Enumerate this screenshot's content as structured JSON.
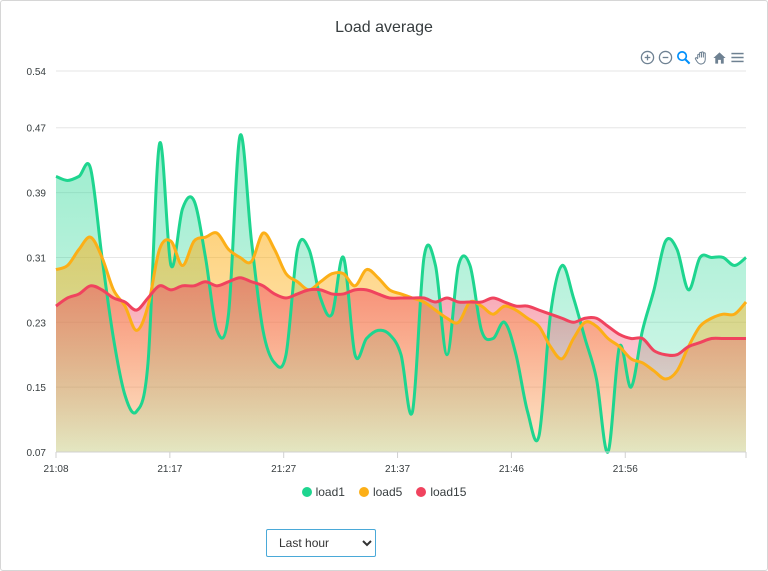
{
  "chart_data": {
    "type": "area",
    "title": "Load average",
    "xlabel": "",
    "ylabel": "",
    "ylim": [
      0.07,
      0.54
    ],
    "y_ticks": [
      "0.54",
      "0.47",
      "0.39",
      "0.31",
      "0.23",
      "0.15",
      "0.07"
    ],
    "x_ticks": [
      "21:08",
      "21:17",
      "21:27",
      "21:37",
      "21:46",
      "21:56"
    ],
    "x_range_minutes": [
      0,
      60
    ],
    "x_tick_minutes": [
      0,
      9.9,
      19.8,
      29.7,
      39.6,
      49.5
    ],
    "grid": true,
    "legend_position": "bottom",
    "series": [
      {
        "name": "load15",
        "color": "#f0435e",
        "points": [
          [
            0,
            0.25
          ],
          [
            1,
            0.26
          ],
          [
            2,
            0.265
          ],
          [
            3,
            0.275
          ],
          [
            4,
            0.27
          ],
          [
            5,
            0.26
          ],
          [
            6,
            0.255
          ],
          [
            7,
            0.245
          ],
          [
            8,
            0.26
          ],
          [
            9,
            0.275
          ],
          [
            10,
            0.27
          ],
          [
            11,
            0.275
          ],
          [
            12,
            0.275
          ],
          [
            13,
            0.28
          ],
          [
            14,
            0.275
          ],
          [
            15,
            0.28
          ],
          [
            16,
            0.285
          ],
          [
            17,
            0.28
          ],
          [
            18,
            0.275
          ],
          [
            19,
            0.265
          ],
          [
            20,
            0.26
          ],
          [
            21,
            0.265
          ],
          [
            22,
            0.27
          ],
          [
            23,
            0.27
          ],
          [
            24,
            0.265
          ],
          [
            25,
            0.265
          ],
          [
            26,
            0.27
          ],
          [
            27,
            0.27
          ],
          [
            28,
            0.265
          ],
          [
            29,
            0.26
          ],
          [
            30,
            0.26
          ],
          [
            31,
            0.26
          ],
          [
            32,
            0.26
          ],
          [
            33,
            0.255
          ],
          [
            34,
            0.26
          ],
          [
            35,
            0.255
          ],
          [
            36,
            0.255
          ],
          [
            37,
            0.255
          ],
          [
            38,
            0.26
          ],
          [
            39,
            0.255
          ],
          [
            40,
            0.25
          ],
          [
            41,
            0.25
          ],
          [
            42,
            0.245
          ],
          [
            43,
            0.24
          ],
          [
            44,
            0.235
          ],
          [
            45,
            0.23
          ],
          [
            46,
            0.235
          ],
          [
            47,
            0.235
          ],
          [
            48,
            0.225
          ],
          [
            49,
            0.215
          ],
          [
            50,
            0.21
          ],
          [
            51,
            0.21
          ],
          [
            52,
            0.195
          ],
          [
            53,
            0.19
          ],
          [
            54,
            0.19
          ],
          [
            55,
            0.2
          ],
          [
            56,
            0.205
          ],
          [
            57,
            0.21
          ],
          [
            58,
            0.21
          ],
          [
            59,
            0.21
          ],
          [
            60,
            0.21
          ]
        ]
      },
      {
        "name": "load5",
        "color": "#fcaf17",
        "points": [
          [
            0,
            0.295
          ],
          [
            1,
            0.3
          ],
          [
            2,
            0.32
          ],
          [
            3,
            0.335
          ],
          [
            4,
            0.31
          ],
          [
            5,
            0.27
          ],
          [
            6,
            0.25
          ],
          [
            7,
            0.22
          ],
          [
            8,
            0.25
          ],
          [
            9,
            0.32
          ],
          [
            10,
            0.33
          ],
          [
            11,
            0.3
          ],
          [
            12,
            0.33
          ],
          [
            13,
            0.335
          ],
          [
            14,
            0.34
          ],
          [
            15,
            0.32
          ],
          [
            16,
            0.31
          ],
          [
            17,
            0.305
          ],
          [
            18,
            0.34
          ],
          [
            19,
            0.32
          ],
          [
            20,
            0.29
          ],
          [
            21,
            0.28
          ],
          [
            22,
            0.27
          ],
          [
            23,
            0.28
          ],
          [
            24,
            0.29
          ],
          [
            25,
            0.29
          ],
          [
            26,
            0.275
          ],
          [
            27,
            0.295
          ],
          [
            28,
            0.285
          ],
          [
            29,
            0.27
          ],
          [
            30,
            0.265
          ],
          [
            31,
            0.26
          ],
          [
            32,
            0.255
          ],
          [
            33,
            0.245
          ],
          [
            34,
            0.235
          ],
          [
            35,
            0.23
          ],
          [
            36,
            0.255
          ],
          [
            37,
            0.25
          ],
          [
            38,
            0.24
          ],
          [
            39,
            0.25
          ],
          [
            40,
            0.245
          ],
          [
            41,
            0.235
          ],
          [
            42,
            0.225
          ],
          [
            43,
            0.2
          ],
          [
            44,
            0.185
          ],
          [
            45,
            0.21
          ],
          [
            46,
            0.23
          ],
          [
            47,
            0.225
          ],
          [
            48,
            0.21
          ],
          [
            49,
            0.2
          ],
          [
            50,
            0.185
          ],
          [
            51,
            0.18
          ],
          [
            52,
            0.17
          ],
          [
            53,
            0.16
          ],
          [
            54,
            0.17
          ],
          [
            55,
            0.2
          ],
          [
            56,
            0.225
          ],
          [
            57,
            0.235
          ],
          [
            58,
            0.24
          ],
          [
            59,
            0.24
          ],
          [
            60,
            0.255
          ]
        ]
      },
      {
        "name": "load1",
        "color": "#1ed58f",
        "points": [
          [
            0,
            0.41
          ],
          [
            1,
            0.405
          ],
          [
            2,
            0.41
          ],
          [
            3,
            0.42
          ],
          [
            4,
            0.31
          ],
          [
            5,
            0.21
          ],
          [
            6,
            0.14
          ],
          [
            7,
            0.12
          ],
          [
            8,
            0.18
          ],
          [
            9,
            0.45
          ],
          [
            10,
            0.3
          ],
          [
            11,
            0.37
          ],
          [
            12,
            0.38
          ],
          [
            13,
            0.31
          ],
          [
            14,
            0.22
          ],
          [
            15,
            0.24
          ],
          [
            16,
            0.46
          ],
          [
            17,
            0.33
          ],
          [
            18,
            0.22
          ],
          [
            19,
            0.18
          ],
          [
            20,
            0.19
          ],
          [
            21,
            0.32
          ],
          [
            22,
            0.32
          ],
          [
            23,
            0.26
          ],
          [
            24,
            0.24
          ],
          [
            25,
            0.31
          ],
          [
            26,
            0.19
          ],
          [
            27,
            0.21
          ],
          [
            28,
            0.22
          ],
          [
            29,
            0.215
          ],
          [
            30,
            0.19
          ],
          [
            31,
            0.12
          ],
          [
            32,
            0.31
          ],
          [
            33,
            0.3
          ],
          [
            34,
            0.19
          ],
          [
            35,
            0.3
          ],
          [
            36,
            0.3
          ],
          [
            37,
            0.22
          ],
          [
            38,
            0.21
          ],
          [
            39,
            0.23
          ],
          [
            40,
            0.19
          ],
          [
            41,
            0.12
          ],
          [
            42,
            0.09
          ],
          [
            43,
            0.24
          ],
          [
            44,
            0.3
          ],
          [
            45,
            0.26
          ],
          [
            46,
            0.21
          ],
          [
            47,
            0.16
          ],
          [
            48,
            0.07
          ],
          [
            49,
            0.2
          ],
          [
            50,
            0.15
          ],
          [
            51,
            0.22
          ],
          [
            52,
            0.27
          ],
          [
            53,
            0.33
          ],
          [
            54,
            0.32
          ],
          [
            55,
            0.27
          ],
          [
            56,
            0.31
          ],
          [
            57,
            0.31
          ],
          [
            58,
            0.31
          ],
          [
            59,
            0.3
          ],
          [
            60,
            0.31
          ]
        ]
      }
    ]
  },
  "toolbar": {
    "icons": [
      "zoom-in-icon",
      "zoom-out-icon",
      "magnifier-icon",
      "pan-hand-icon",
      "home-icon",
      "menu-icon"
    ]
  },
  "legend": {
    "items": [
      {
        "label": "load1",
        "color": "#1ed58f"
      },
      {
        "label": "load5",
        "color": "#fcaf17"
      },
      {
        "label": "load15",
        "color": "#f0435e"
      }
    ]
  },
  "range_select": {
    "selected": "Last hour"
  }
}
